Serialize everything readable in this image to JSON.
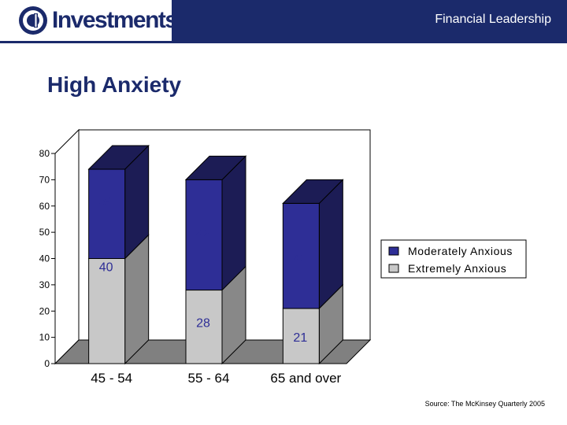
{
  "header": {
    "logo_text": "Investments",
    "tagline": "Financial Leadership"
  },
  "slide": {
    "title": "High Anxiety",
    "source": "Source: The McKinsey Quarterly 2005"
  },
  "colors": {
    "brand": "#1b2a6b",
    "moderately": "#2e2e96",
    "extremely": "#c8c8c8"
  },
  "chart_data": {
    "type": "bar",
    "stacked": true,
    "three_d": true,
    "categories": [
      "45 - 54",
      "55 - 64",
      "65 and over"
    ],
    "series": [
      {
        "name": "Extremely Anxious",
        "values": [
          40,
          28,
          21
        ],
        "color": "#c8c8c8"
      },
      {
        "name": "Moderately Anxious",
        "values": [
          34,
          42,
          40
        ],
        "color": "#2e2e96"
      }
    ],
    "ylim": [
      0,
      80
    ],
    "yticks": [
      0,
      10,
      20,
      30,
      40,
      50,
      60,
      70,
      80
    ],
    "legend": "right",
    "grid": false
  }
}
